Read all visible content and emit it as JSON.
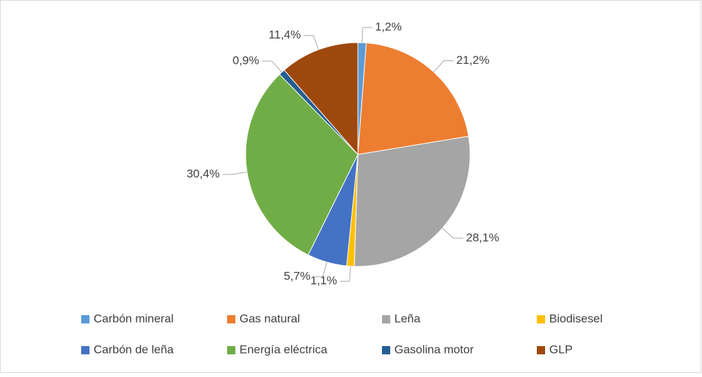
{
  "chart_data": {
    "type": "pie",
    "categories": [
      "Carbón mineral",
      "Gas natural",
      "Leña",
      "Biodisesel",
      "Carbón de leña",
      "Energía eléctrica",
      "Gasolina motor",
      "GLP"
    ],
    "values": [
      1.2,
      21.2,
      28.1,
      1.1,
      5.7,
      30.4,
      0.9,
      11.4
    ],
    "value_labels": [
      "1,2%",
      "21,2%",
      "28,1%",
      "1,1%",
      "5,7%",
      "30,4%",
      "0,9%",
      "11,4%"
    ],
    "colors": [
      "#5b9bd5",
      "#ed7d31",
      "#a5a5a5",
      "#ffc000",
      "#4472c4",
      "#70ad47",
      "#255e91",
      "#9e480e"
    ],
    "legend": "bottom"
  }
}
